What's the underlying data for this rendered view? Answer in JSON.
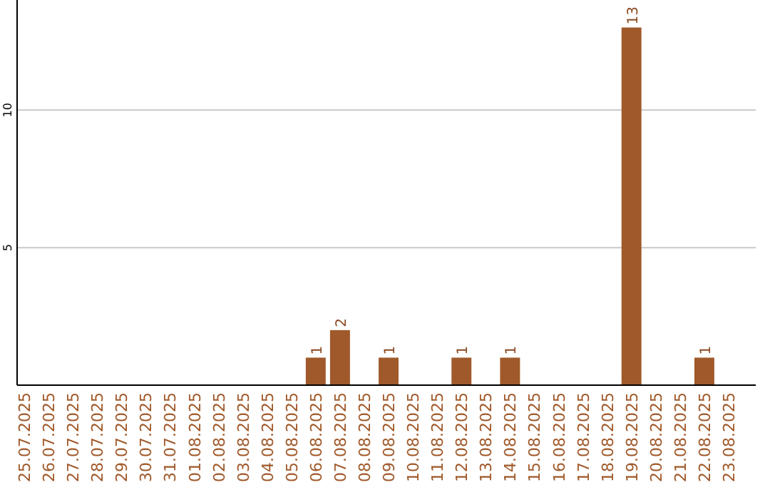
{
  "chart_data": {
    "type": "bar",
    "categories": [
      "25.07.2025",
      "26.07.2025",
      "27.07.2025",
      "28.07.2025",
      "29.07.2025",
      "30.07.2025",
      "31.07.2025",
      "01.08.2025",
      "02.08.2025",
      "03.08.2025",
      "04.08.2025",
      "05.08.2025",
      "06.08.2025",
      "07.08.2025",
      "08.08.2025",
      "09.08.2025",
      "10.08.2025",
      "11.08.2025",
      "12.08.2025",
      "13.08.2025",
      "14.08.2025",
      "15.08.2025",
      "16.08.2025",
      "17.08.2025",
      "18.08.2025",
      "19.08.2025",
      "20.08.2025",
      "21.08.2025",
      "22.08.2025",
      "23.08.2025"
    ],
    "values": [
      0,
      0,
      0,
      0,
      0,
      0,
      0,
      0,
      0,
      0,
      0,
      0,
      1,
      2,
      0,
      1,
      0,
      0,
      1,
      0,
      1,
      0,
      0,
      0,
      0,
      13,
      0,
      0,
      1,
      0
    ],
    "value_labels": [
      null,
      null,
      null,
      null,
      null,
      null,
      null,
      null,
      null,
      null,
      null,
      null,
      "1",
      "2",
      null,
      "1",
      null,
      null,
      "1",
      null,
      "1",
      null,
      null,
      null,
      null,
      "13",
      null,
      null,
      "1",
      null
    ],
    "color": "#a0592a",
    "ylim": [
      0,
      14
    ],
    "yticks": [
      5,
      10
    ],
    "grid": "y"
  }
}
